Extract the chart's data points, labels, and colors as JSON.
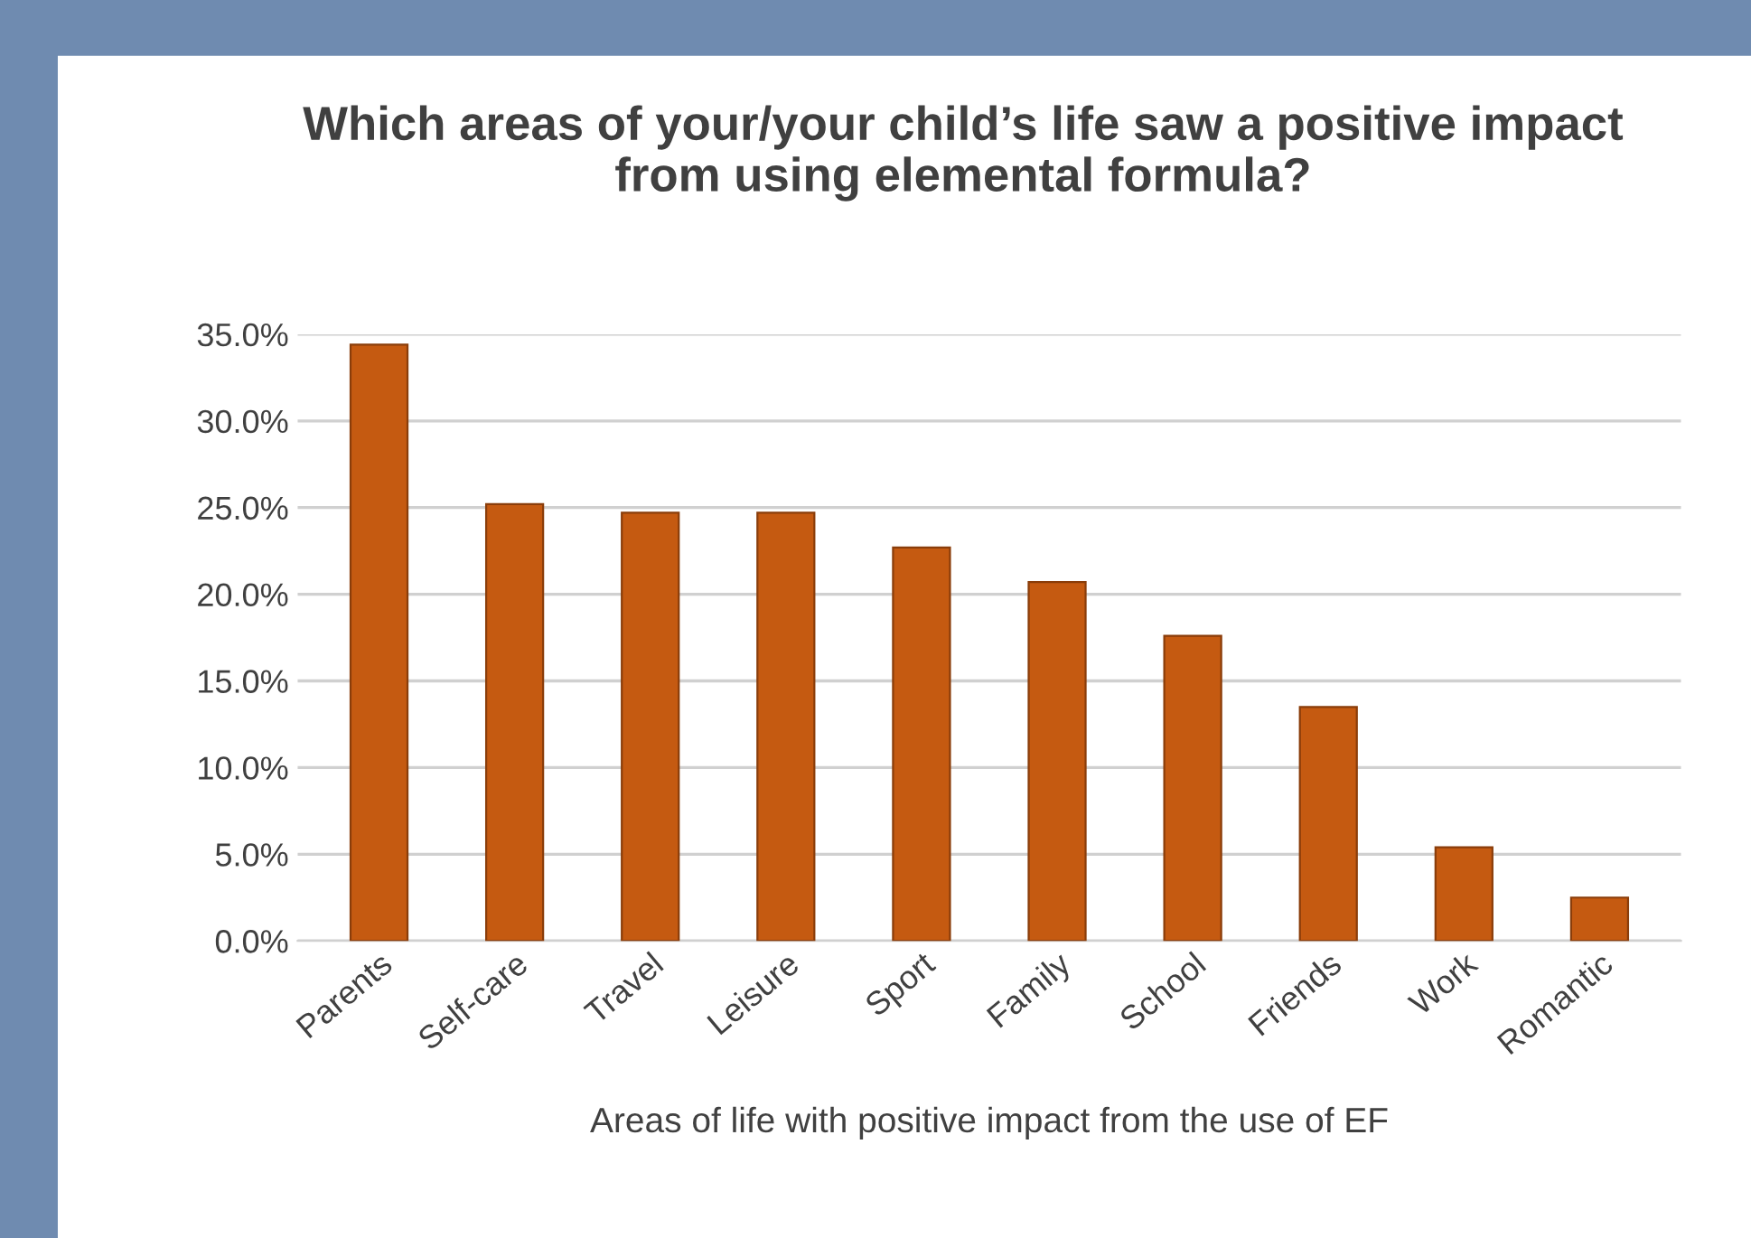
{
  "chart_data": {
    "type": "bar",
    "title": "Which areas of your/your child’s life saw a positive impact from using elemental formula?",
    "xlabel": "Areas of life with positive impact from the use of EF",
    "categories": [
      "Parents",
      "Self-care",
      "Travel",
      "Leisure",
      "Sport",
      "Family",
      "School",
      "Friends",
      "Work",
      "Romantic"
    ],
    "values": [
      34.4,
      25.2,
      24.7,
      24.7,
      22.7,
      20.7,
      17.6,
      13.5,
      5.4,
      2.5
    ],
    "color": "#c55a11",
    "ylim": [
      0,
      35
    ],
    "yticks": [
      {
        "value": 0,
        "label": "0.0%"
      },
      {
        "value": 5,
        "label": "5.0%"
      },
      {
        "value": 10,
        "label": "10.0%"
      },
      {
        "value": 15,
        "label": "15.0%"
      },
      {
        "value": 20,
        "label": "20.0%"
      },
      {
        "value": 25,
        "label": "25.0%"
      },
      {
        "value": 30,
        "label": "30.0%"
      },
      {
        "value": 35,
        "label": "35.0%"
      }
    ],
    "grid": "y"
  }
}
